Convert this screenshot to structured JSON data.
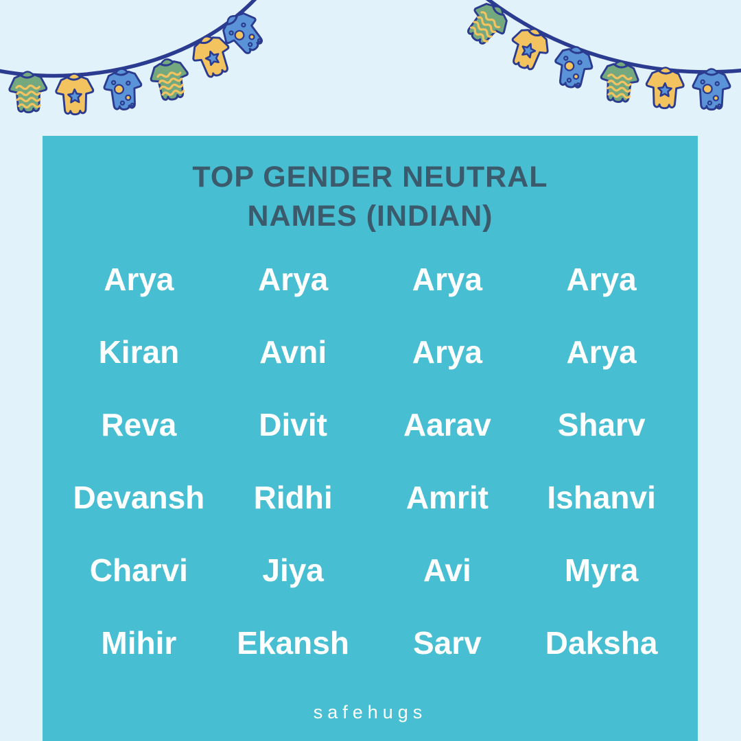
{
  "poster": {
    "background_color": "#e2f2fb"
  },
  "card": {
    "background_color": "#48bed2",
    "title_line1": "TOP GENDER NEUTRAL",
    "title_line2": "NAMES (INDIAN)",
    "title_color": "#3b5a6b",
    "name_color": "#ffffff",
    "names": [
      [
        "Arya",
        "Arya",
        "Arya",
        "Arya"
      ],
      [
        "Kiran",
        "Avni",
        "Arya",
        "Arya"
      ],
      [
        "Reva",
        "Divit",
        "Aarav",
        "Sharv"
      ],
      [
        "Devansh",
        "Ridhi",
        "Amrit",
        "Ishanvi"
      ],
      [
        "Charvi",
        "Jiya",
        "Avi",
        "Myra"
      ],
      [
        "Mihir",
        "Ekansh",
        "Sarv",
        "Daksha"
      ]
    ],
    "footer_brand": "safehugs"
  },
  "decor": {
    "string_color": "#2b3b8f",
    "onesie_colors": {
      "green": "#74a87f",
      "yellow": "#f3c360",
      "blue": "#5b93d8",
      "outline": "#2b3b8f"
    },
    "left_bunting": [
      "green-waves-onesie",
      "yellow-star-onesie",
      "blue-dots-onesie",
      "green-waves-onesie",
      "yellow-star-onesie",
      "blue-dots-onesie"
    ],
    "right_bunting": [
      "green-waves-onesie",
      "yellow-star-onesie",
      "blue-dots-onesie",
      "green-waves-onesie",
      "yellow-star-onesie",
      "blue-dots-onesie"
    ]
  }
}
